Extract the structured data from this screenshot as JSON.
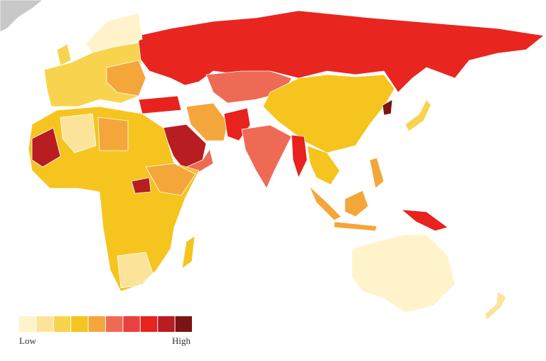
{
  "legend": {
    "colors": [
      "#fff3cc",
      "#fbe49a",
      "#f8d44e",
      "#f5c41f",
      "#f4a63a",
      "#ef6a55",
      "#eb4040",
      "#e8221c",
      "#b81d22",
      "#7c1416"
    ],
    "low_label": "Low",
    "high_label": "High"
  }
}
